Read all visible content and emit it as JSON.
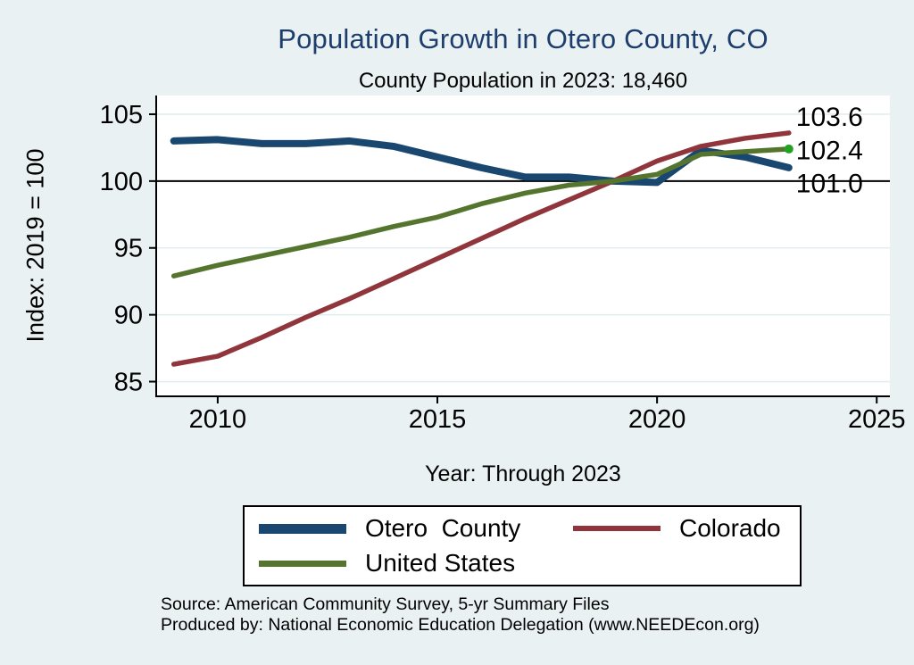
{
  "title": "Population Growth in Otero County, CO",
  "subtitle": "County Population in 2023: 18,460",
  "chart_data": {
    "type": "line",
    "x": [
      2009,
      2010,
      2011,
      2012,
      2013,
      2014,
      2015,
      2016,
      2017,
      2018,
      2019,
      2020,
      2021,
      2022,
      2023
    ],
    "series": [
      {
        "name": "Otero County",
        "color": "#1a476f",
        "line_width": 8,
        "values": [
          103.0,
          103.1,
          102.8,
          102.8,
          103.0,
          102.6,
          101.8,
          101.0,
          100.3,
          100.3,
          100.0,
          99.9,
          102.3,
          101.8,
          101.0
        ]
      },
      {
        "name": "Colorado",
        "color": "#90353b",
        "line_width": 5.5,
        "values": [
          86.3,
          86.9,
          88.3,
          89.8,
          91.2,
          92.7,
          94.2,
          95.7,
          97.2,
          98.6,
          100.0,
          101.5,
          102.6,
          103.2,
          103.6
        ]
      },
      {
        "name": "United States",
        "color": "#55752f",
        "line_width": 5.5,
        "values": [
          92.9,
          93.7,
          94.4,
          95.1,
          95.8,
          96.6,
          97.3,
          98.3,
          99.1,
          99.7,
          100.0,
          100.5,
          102.0,
          102.2,
          102.4
        ],
        "end_marker_color": "#22a122"
      }
    ],
    "end_labels": [
      "103.6",
      "102.4",
      "101.0"
    ],
    "xlabel": "Year: Through 2023",
    "ylabel": "Index: 2019 = 100",
    "xticks": [
      "2010",
      "2015",
      "2020",
      "2025"
    ],
    "xtick_values": [
      2010,
      2015,
      2020,
      2025
    ],
    "yticks": [
      "85",
      "90",
      "95",
      "100",
      "105"
    ],
    "ytick_values": [
      85,
      90,
      95,
      100,
      105
    ],
    "xlim": [
      2008.6,
      2025.3
    ],
    "ylim": [
      83.9,
      106.4
    ],
    "ref_line_y": 100,
    "grid": "horizontal",
    "legend_position": "bottom"
  },
  "legend": {
    "entries": [
      {
        "label": "Otero  County"
      },
      {
        "label": "Colorado"
      },
      {
        "label": "United States"
      }
    ]
  },
  "notes": [
    "Source: American Community Survey, 5-yr Summary Files",
    "Produced by: National Economic Education Delegation (www.NEEDEcon.org)"
  ],
  "colors": {
    "background": "#e9f1f3",
    "plot_background": "#ffffff",
    "grid": "#e2edef",
    "axis": "#000000",
    "title": "#1d3d6d",
    "reference_line": "#000000"
  }
}
